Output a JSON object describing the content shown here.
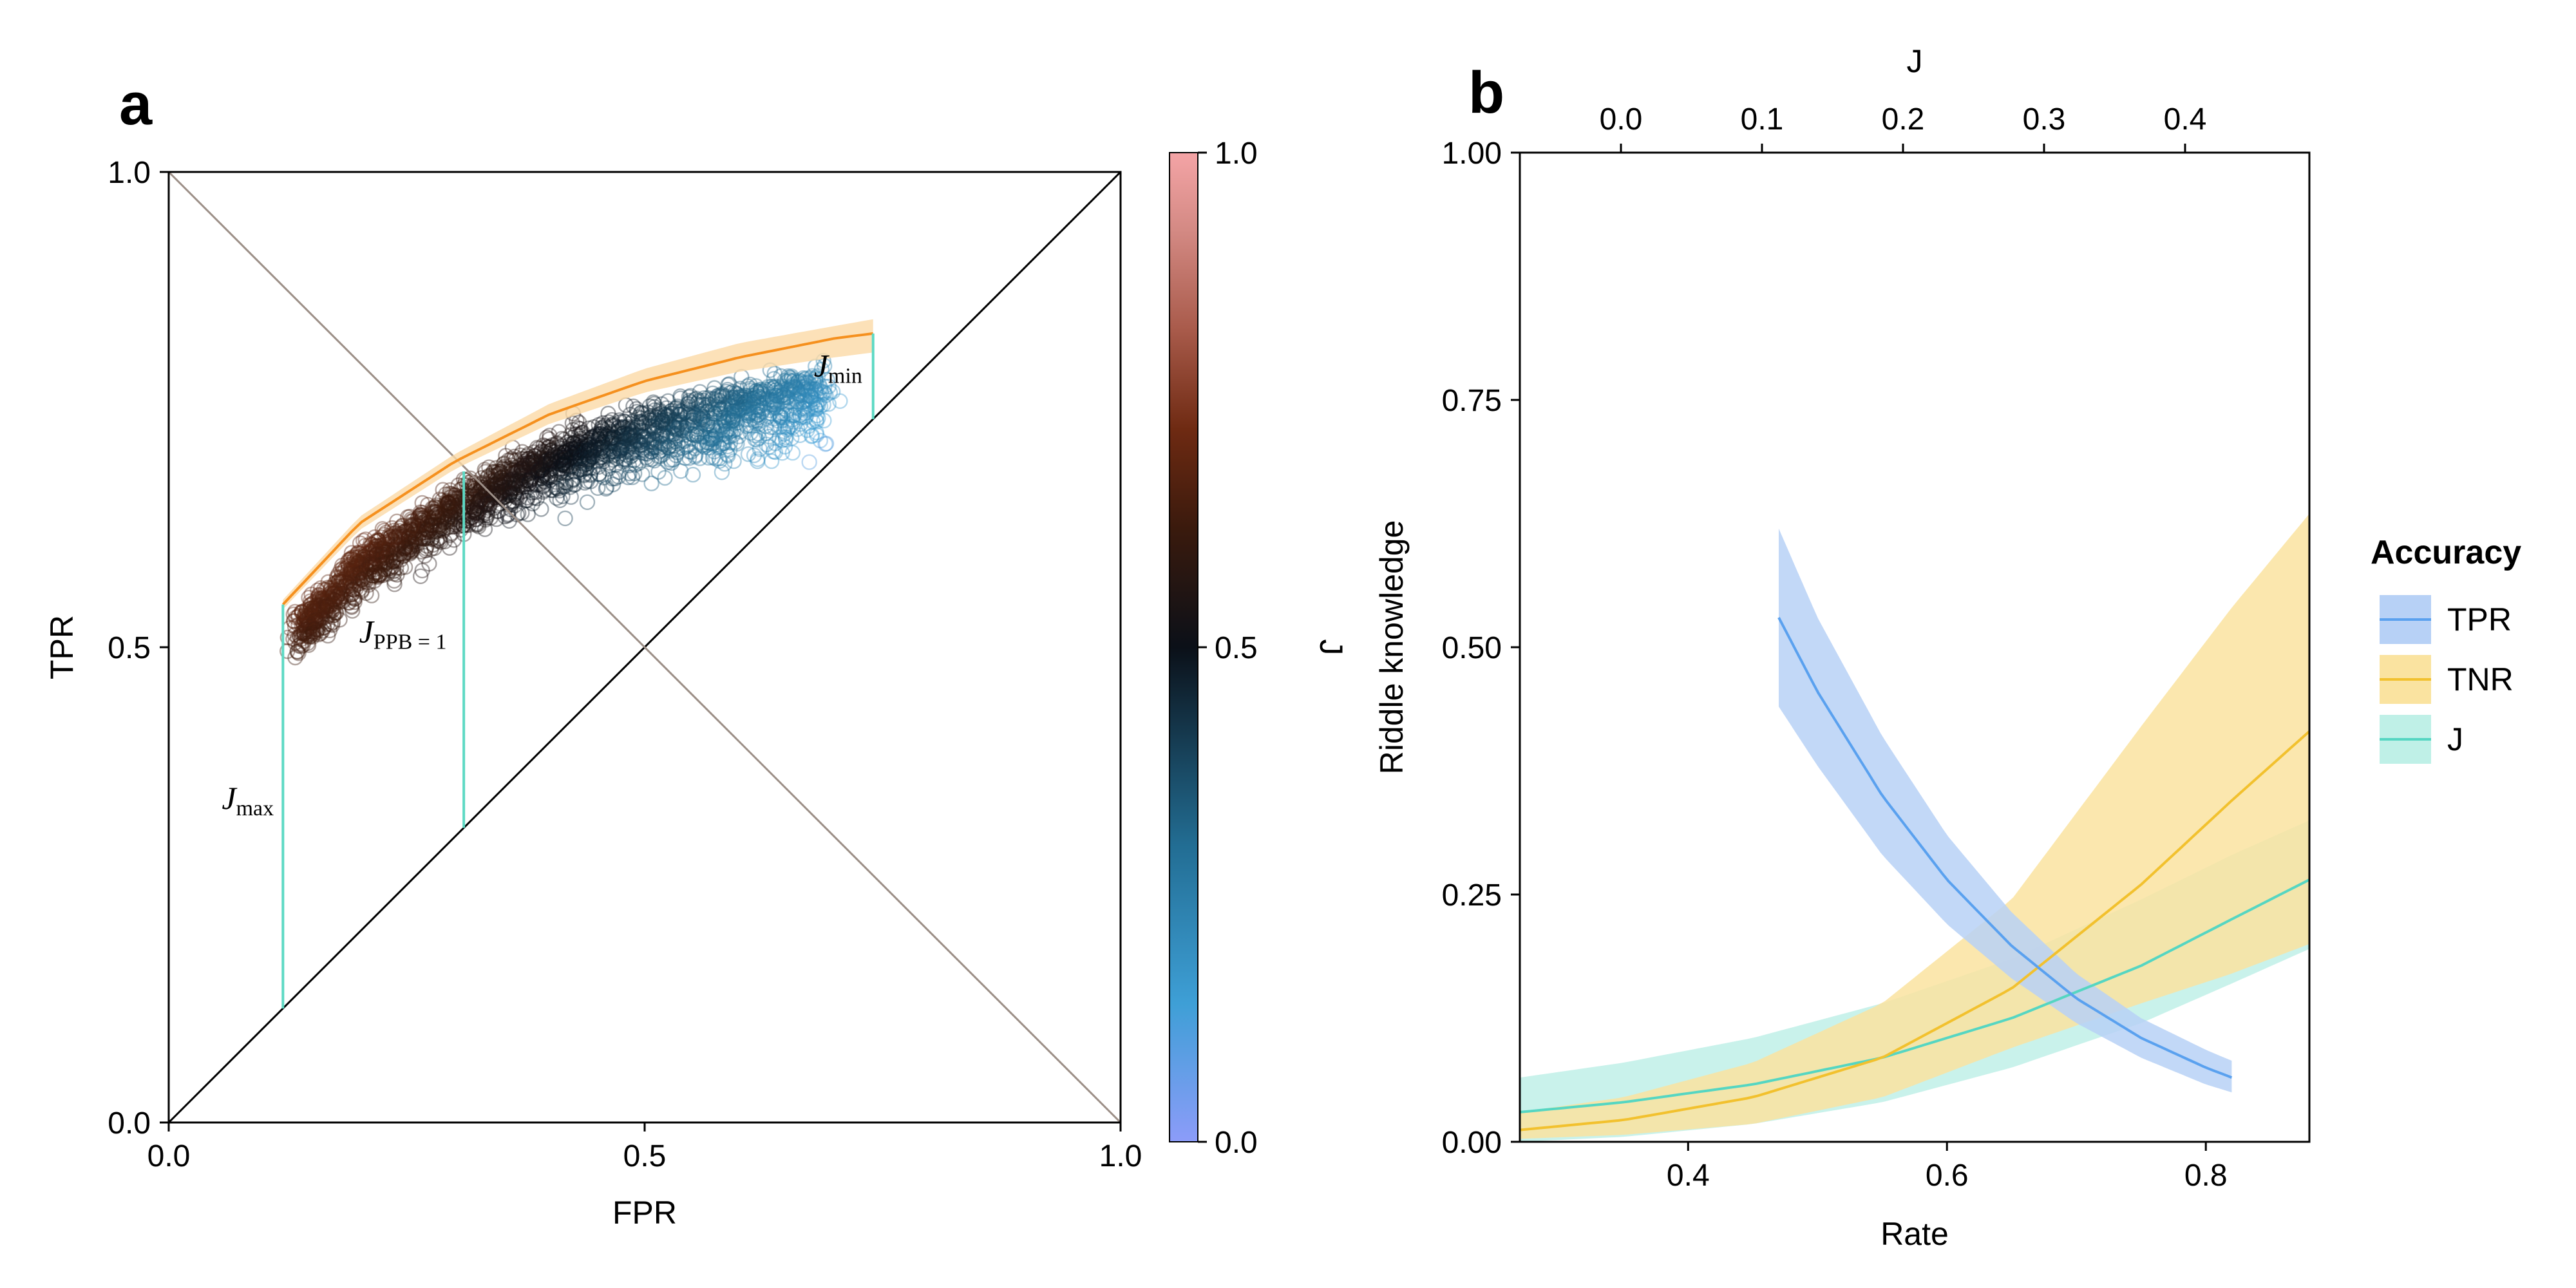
{
  "panels": {
    "a": {
      "letter": "a"
    },
    "b": {
      "letter": "b"
    }
  },
  "colors": {
    "diagonal": "#000000",
    "anti_diagonal": "#9c8f87",
    "fit_line": "#f5901e",
    "fit_band": "#fbd9a6",
    "j_segment": "#5dd9c4",
    "tpr": "#5aa1ef",
    "tpr_band": "#b7d1f6",
    "tnr": "#f2c12e",
    "tnr_band": "#fae3a0",
    "j": "#55d6c2",
    "j_band": "#bff0e7",
    "colormap": [
      "#8c9cf9",
      "#3e9fd6",
      "#226d93",
      "#0b1018",
      "#3a1a0d",
      "#6e2a12",
      "#a85a4a",
      "#d38983",
      "#f4a4a6"
    ]
  },
  "chart_data": [
    {
      "type": "scatter",
      "panel": "a",
      "xlabel": "FPR",
      "ylabel": "TPR",
      "xlim": [
        0,
        1
      ],
      "ylim": [
        0,
        1
      ],
      "xticks": [
        "0.0",
        "0.5",
        "1.0"
      ],
      "yticks": [
        "0.0",
        "0.5",
        "1.0"
      ],
      "colorbar": {
        "label": "J",
        "range": [
          0,
          1
        ],
        "ticks": [
          "0.0",
          "0.5",
          "1.0"
        ]
      },
      "cloud": {
        "description_points": [
          {
            "fpr": 0.14,
            "tpr": 0.51
          },
          {
            "fpr": 0.3,
            "tpr": 0.69
          },
          {
            "fpr": 0.5,
            "tpr": 0.73
          },
          {
            "fpr": 0.65,
            "tpr": 0.7
          },
          {
            "fpr": 0.71,
            "tpr": 0.64
          }
        ],
        "count": 2500
      },
      "fit_curve": {
        "fpr": [
          0.12,
          0.2,
          0.3,
          0.4,
          0.5,
          0.6,
          0.7,
          0.74
        ],
        "tpr": [
          0.545,
          0.63,
          0.695,
          0.745,
          0.78,
          0.805,
          0.825,
          0.83
        ],
        "band_upper": [
          0.55,
          0.637,
          0.703,
          0.756,
          0.793,
          0.82,
          0.838,
          0.845
        ],
        "band_lower": [
          0.54,
          0.623,
          0.687,
          0.735,
          0.768,
          0.79,
          0.805,
          0.81
        ]
      },
      "annotations": [
        {
          "label": "J",
          "sub": "max",
          "fpr": 0.12,
          "tpr_low": 0.12,
          "tpr_high": 0.545
        },
        {
          "label": "J",
          "sub": "PPB = 1",
          "fpr": 0.31,
          "tpr_low": 0.31,
          "tpr_high": 0.685
        },
        {
          "label": "J",
          "sub": "min",
          "fpr": 0.74,
          "tpr_low": 0.74,
          "tpr_high": 0.83
        }
      ]
    },
    {
      "type": "line",
      "panel": "b",
      "xlabel": "Rate",
      "ylabel": "Riddle knowledge",
      "top_xlabel": "J",
      "xlim": [
        0.27,
        0.88
      ],
      "ylim": [
        0,
        1
      ],
      "xticks": [
        "0.4",
        "0.6",
        "0.8"
      ],
      "yticks": [
        "0.00",
        "0.25",
        "0.50",
        "0.75",
        "1.00"
      ],
      "top_xticks": [
        "0.0",
        "0.1",
        "0.2",
        "0.3",
        "0.4"
      ],
      "legend": {
        "title": "Accuracy",
        "placement": "right"
      },
      "series": [
        {
          "name": "TPR",
          "x": [
            0.47,
            0.5,
            0.55,
            0.6,
            0.65,
            0.7,
            0.75,
            0.8,
            0.82
          ],
          "y": [
            0.53,
            0.455,
            0.35,
            0.265,
            0.198,
            0.145,
            0.105,
            0.075,
            0.065
          ],
          "lower": [
            0.44,
            0.38,
            0.29,
            0.22,
            0.165,
            0.12,
            0.085,
            0.058,
            0.05
          ],
          "upper": [
            0.62,
            0.53,
            0.41,
            0.31,
            0.232,
            0.17,
            0.125,
            0.093,
            0.082
          ]
        },
        {
          "name": "TNR",
          "x": [
            0.27,
            0.35,
            0.45,
            0.55,
            0.65,
            0.75,
            0.82,
            0.88
          ],
          "y": [
            0.012,
            0.022,
            0.045,
            0.085,
            0.155,
            0.26,
            0.345,
            0.415
          ],
          "lower": [
            0.003,
            0.007,
            0.018,
            0.045,
            0.095,
            0.14,
            0.17,
            0.2
          ],
          "upper": [
            0.03,
            0.045,
            0.08,
            0.14,
            0.245,
            0.42,
            0.54,
            0.635
          ]
        },
        {
          "name": "J",
          "x": [
            0.27,
            0.35,
            0.45,
            0.55,
            0.65,
            0.75,
            0.82,
            0.88
          ],
          "y": [
            0.03,
            0.04,
            0.058,
            0.085,
            0.125,
            0.178,
            0.225,
            0.265
          ],
          "lower": [
            0.0,
            0.005,
            0.018,
            0.04,
            0.075,
            0.12,
            0.16,
            0.195
          ],
          "upper": [
            0.065,
            0.08,
            0.105,
            0.14,
            0.185,
            0.245,
            0.29,
            0.325
          ]
        }
      ]
    }
  ]
}
